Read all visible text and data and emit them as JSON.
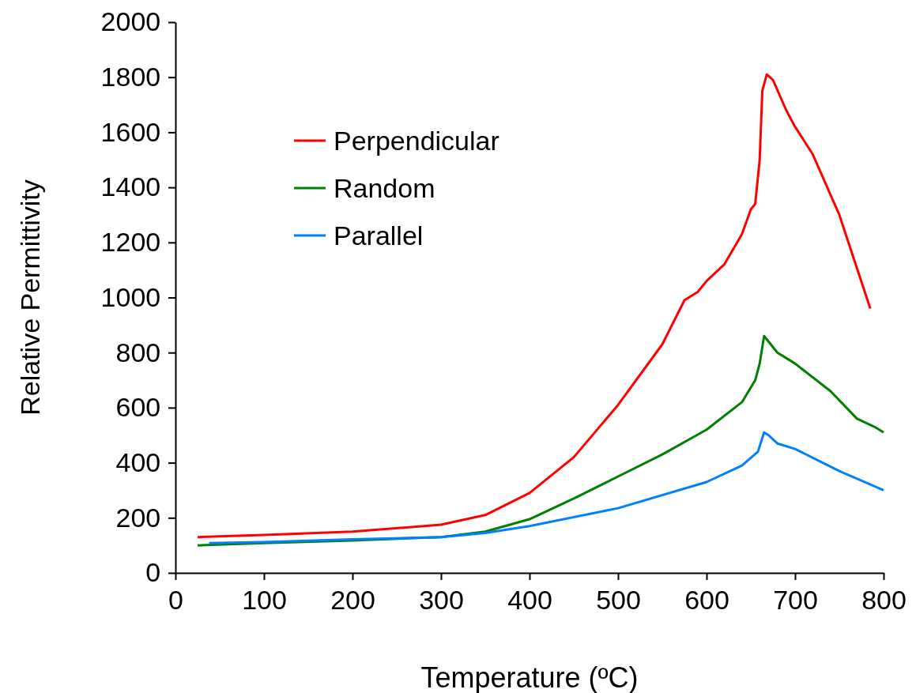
{
  "chart_data": {
    "type": "line",
    "xlabel": "Temperature (ºC)",
    "ylabel": "Relative Permittivity",
    "xlim": [
      0,
      800
    ],
    "xticks": [
      0,
      100,
      200,
      300,
      400,
      500,
      600,
      700,
      800
    ],
    "ylim": [
      0,
      2000
    ],
    "yticks": [
      0,
      200,
      400,
      600,
      800,
      1000,
      1200,
      1400,
      1600,
      1800,
      2000
    ],
    "grid": false,
    "legend": "top left",
    "marker": "none",
    "line_style": "solid",
    "series": [
      {
        "name": "Perpendicular",
        "color": "#ff0000",
        "x": [
          25,
          100,
          200,
          300,
          350,
          400,
          450,
          500,
          550,
          575,
          590,
          600,
          620,
          640,
          650,
          655,
          660,
          663,
          668,
          675,
          690,
          700,
          720,
          750,
          785
        ],
        "values": [
          130,
          138,
          150,
          175,
          210,
          290,
          420,
          610,
          830,
          990,
          1020,
          1060,
          1120,
          1230,
          1320,
          1340,
          1500,
          1750,
          1810,
          1790,
          1680,
          1620,
          1520,
          1300,
          960
        ]
      },
      {
        "name": "Random",
        "color": "#008000",
        "x": [
          25,
          100,
          200,
          300,
          350,
          400,
          450,
          500,
          550,
          600,
          640,
          655,
          660,
          665,
          670,
          680,
          700,
          740,
          770,
          790,
          800
        ],
        "values": [
          100,
          108,
          118,
          130,
          150,
          195,
          270,
          350,
          430,
          520,
          620,
          700,
          760,
          860,
          840,
          800,
          760,
          660,
          560,
          530,
          510
        ]
      },
      {
        "name": "Parallel",
        "color": "#0080ff",
        "x": [
          38,
          100,
          200,
          300,
          350,
          400,
          500,
          600,
          640,
          658,
          665,
          670,
          680,
          700,
          750,
          800
        ],
        "values": [
          108,
          112,
          122,
          130,
          145,
          170,
          235,
          330,
          390,
          440,
          510,
          500,
          470,
          450,
          370,
          300
        ]
      }
    ]
  }
}
